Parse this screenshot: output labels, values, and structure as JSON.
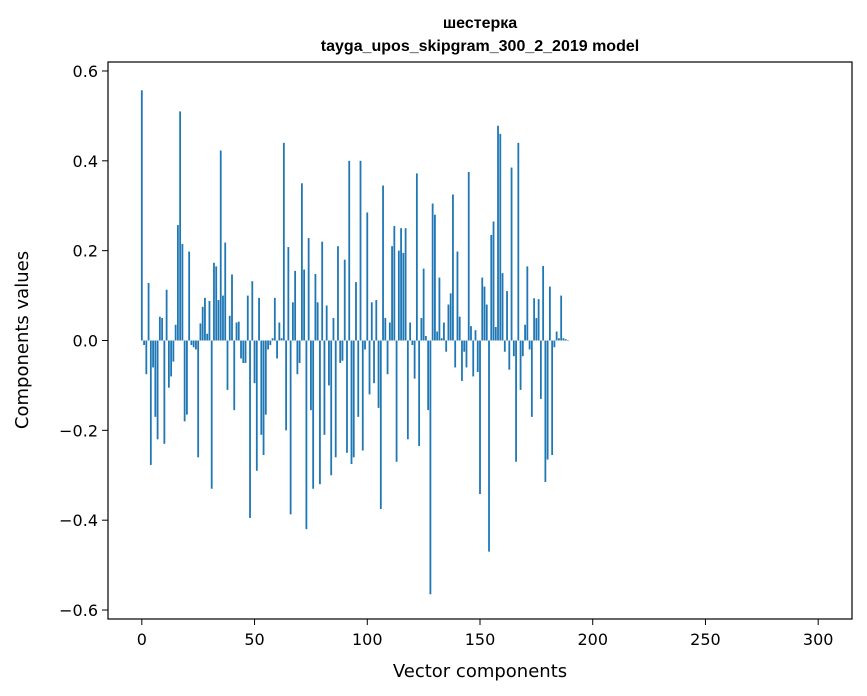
{
  "chart_data": {
    "type": "bar",
    "title": "шестерка",
    "subtitle": "tayga_upos_skipgram_300_2_2019 model",
    "xlabel": "Vector components",
    "ylabel": "Components values",
    "xlim": [
      -15,
      315
    ],
    "ylim": [
      -0.62,
      0.62
    ],
    "xticks": [
      0,
      50,
      100,
      150,
      200,
      250,
      300
    ],
    "xtick_labels": [
      "0",
      "50",
      "100",
      "150",
      "200",
      "250",
      "300"
    ],
    "yticks": [
      0.6,
      0.4,
      0.2,
      0.0,
      -0.2,
      -0.4,
      -0.6
    ],
    "ytick_labels": [
      "0.6",
      "0.4",
      "0.2",
      "0.0",
      "−0.2",
      "−0.4",
      "−0.6"
    ],
    "bar_color": "#1f77b4",
    "x_start": 0,
    "values": [
      0.557,
      -0.01,
      -0.075,
      0.128,
      -0.277,
      -0.06,
      -0.17,
      -0.22,
      0.053,
      0.05,
      -0.23,
      0.113,
      -0.105,
      -0.08,
      -0.047,
      0.035,
      0.257,
      0.51,
      0.215,
      -0.18,
      -0.165,
      0.198,
      -0.01,
      -0.015,
      -0.02,
      -0.26,
      0.038,
      0.075,
      0.095,
      0.015,
      0.088,
      -0.33,
      0.173,
      0.165,
      0.09,
      0.423,
      0.1,
      0.218,
      -0.11,
      0.055,
      0.147,
      -0.155,
      0.04,
      0.042,
      -0.04,
      -0.05,
      -0.05,
      0.1,
      -0.395,
      0.132,
      -0.095,
      -0.29,
      0.095,
      -0.21,
      -0.255,
      -0.165,
      -0.02,
      -0.01,
      0.005,
      0.095,
      -0.04,
      0.04,
      0.005,
      0.44,
      -0.2,
      0.208,
      -0.387,
      0.085,
      0.155,
      -0.075,
      -0.05,
      0.35,
      0.158,
      -0.42,
      0.228,
      -0.155,
      -0.33,
      0.148,
      0.085,
      -0.32,
      0.22,
      -0.21,
      0.078,
      -0.1,
      -0.3,
      0.05,
      -0.26,
      0.21,
      -0.05,
      -0.045,
      0.18,
      -0.25,
      0.4,
      -0.275,
      -0.26,
      0.13,
      -0.17,
      0.4,
      -0.245,
      -0.02,
      0.285,
      -0.12,
      0.085,
      -0.095,
      0.09,
      -0.15,
      -0.375,
      0.345,
      0.05,
      -0.075,
      0.04,
      0.21,
      0.255,
      -0.27,
      0.2,
      0.25,
      0.195,
      0.25,
      -0.22,
      0.04,
      -0.01,
      -0.085,
      0.372,
      -0.235,
      0.05,
      0.16,
      0.01,
      -0.155,
      -0.565,
      0.305,
      0.28,
      0.02,
      0.14,
      0.005,
      0.04,
      -0.025,
      0.08,
      0.105,
      0.325,
      -0.06,
      0.198,
      0.053,
      -0.09,
      -0.025,
      -0.06,
      0.375,
      0.032,
      -0.08,
      0.023,
      -0.07,
      -0.342,
      0.14,
      0.12,
      0.08,
      -0.47,
      0.235,
      0.265,
      0.03,
      0.478,
      0.46,
      0.15,
      -0.025,
      0.11,
      -0.065,
      0.385,
      -0.035,
      -0.27,
      0.44,
      -0.11,
      -0.035,
      0.035,
      0.165,
      -0.02,
      -0.17,
      0.094,
      0.05,
      0.092,
      -0.13,
      0.166,
      -0.315,
      -0.265,
      0.12,
      -0.255,
      -0.015,
      0.02,
      0.005,
      0.1,
      0.005,
      0.003,
      -0.0
    ]
  }
}
